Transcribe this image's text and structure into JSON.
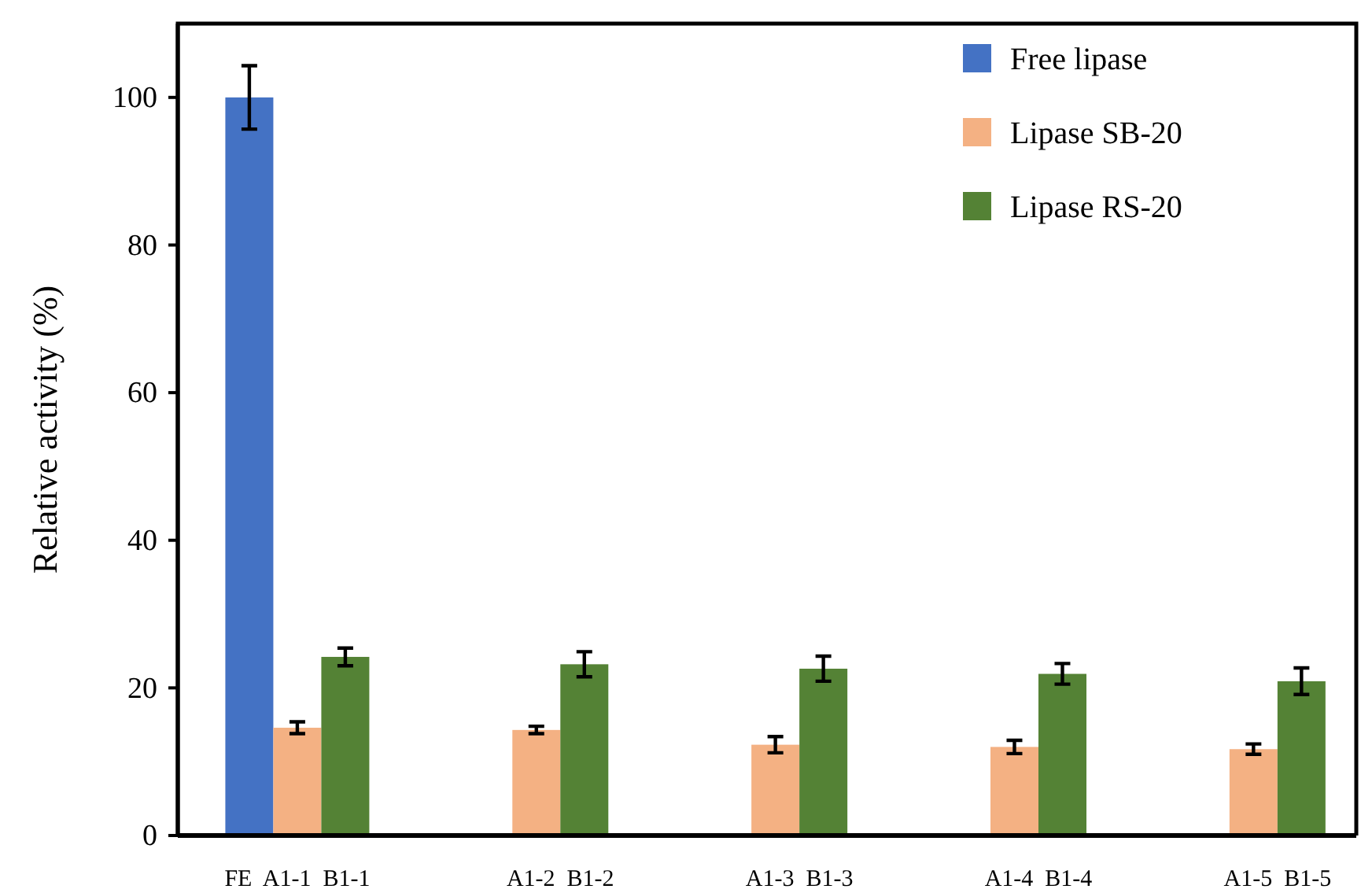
{
  "chart_data": {
    "type": "bar",
    "ylabel": "Relative activity (%)",
    "categories": [
      "FE  A1-1  B1-1",
      "A1-2  B1-2",
      "A1-3  B1-3",
      "A1-4  B1-4",
      "A1-5  B1-5"
    ],
    "series": [
      {
        "name": "Free lipase",
        "color": "#4472c4",
        "values": [
          100,
          null,
          null,
          null,
          null
        ],
        "errors": [
          4.3,
          null,
          null,
          null,
          null
        ]
      },
      {
        "name": "Lipase SB-20",
        "color": "#f4b183",
        "values": [
          14.6,
          14.3,
          12.3,
          12.0,
          11.7
        ],
        "errors": [
          0.8,
          0.5,
          1.1,
          0.9,
          0.7
        ]
      },
      {
        "name": "Lipase RS-20",
        "color": "#548235",
        "values": [
          24.2,
          23.2,
          22.6,
          21.9,
          20.9
        ],
        "errors": [
          1.2,
          1.7,
          1.7,
          1.4,
          1.8
        ]
      }
    ],
    "ylim": [
      0,
      110
    ],
    "yticks": [
      0,
      20,
      40,
      60,
      80,
      100
    ],
    "grid": false,
    "legend": "top right"
  }
}
